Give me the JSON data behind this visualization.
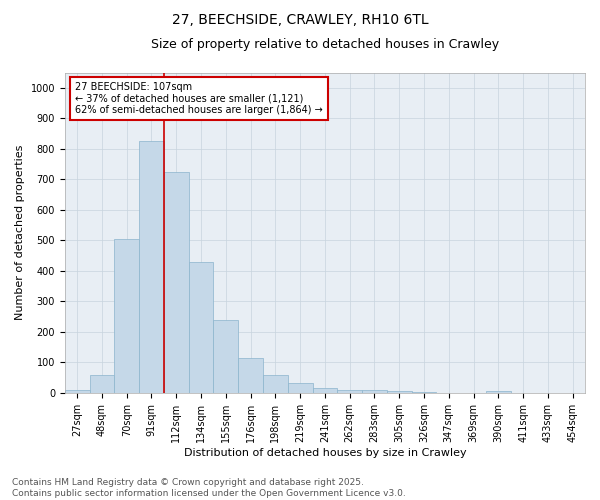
{
  "title": "27, BEECHSIDE, CRAWLEY, RH10 6TL",
  "subtitle": "Size of property relative to detached houses in Crawley",
  "xlabel": "Distribution of detached houses by size in Crawley",
  "ylabel": "Number of detached properties",
  "bin_labels": [
    "27sqm",
    "48sqm",
    "70sqm",
    "91sqm",
    "112sqm",
    "134sqm",
    "155sqm",
    "176sqm",
    "198sqm",
    "219sqm",
    "241sqm",
    "262sqm",
    "283sqm",
    "305sqm",
    "326sqm",
    "347sqm",
    "369sqm",
    "390sqm",
    "411sqm",
    "433sqm",
    "454sqm"
  ],
  "bar_values": [
    8,
    58,
    505,
    825,
    725,
    428,
    238,
    115,
    58,
    32,
    15,
    10,
    10,
    5,
    3,
    0,
    0,
    5,
    0,
    0,
    0
  ],
  "bar_color": "#c5d8e8",
  "bar_edgecolor": "#8ab4cc",
  "vline_color": "#cc0000",
  "vline_x_index": 3.5,
  "annotation_line1": "27 BEECHSIDE: 107sqm",
  "annotation_line2": "← 37% of detached houses are smaller (1,121)",
  "annotation_line3": "62% of semi-detached houses are larger (1,864) →",
  "annotation_box_edgecolor": "#cc0000",
  "annotation_box_facecolor": "white",
  "ylim": [
    0,
    1050
  ],
  "yticks": [
    0,
    100,
    200,
    300,
    400,
    500,
    600,
    700,
    800,
    900,
    1000
  ],
  "grid_color": "#c8d4de",
  "background_color": "#e8eef4",
  "footer_text": "Contains HM Land Registry data © Crown copyright and database right 2025.\nContains public sector information licensed under the Open Government Licence v3.0.",
  "title_fontsize": 10,
  "subtitle_fontsize": 9,
  "xlabel_fontsize": 8,
  "ylabel_fontsize": 8,
  "tick_fontsize": 7,
  "annotation_fontsize": 7,
  "footer_fontsize": 6.5
}
